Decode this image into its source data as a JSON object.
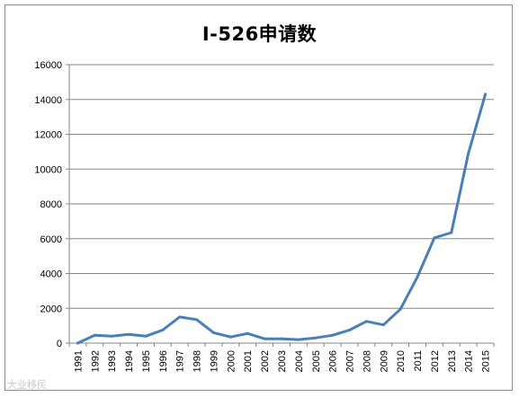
{
  "chart_data": {
    "type": "line",
    "title": "I-526申请数",
    "xlabel": "",
    "ylabel": "",
    "ylim": [
      0,
      16000
    ],
    "yticks": [
      0,
      2000,
      4000,
      6000,
      8000,
      10000,
      12000,
      14000,
      16000
    ],
    "grid": true,
    "legend": "none",
    "x": [
      "1991",
      "1992",
      "1993",
      "1994",
      "1995",
      "1996",
      "1997",
      "1998",
      "1999",
      "2000",
      "2001",
      "2002",
      "2003",
      "2004",
      "2005",
      "2006",
      "2007",
      "2008",
      "2009",
      "2010",
      "2011",
      "2012",
      "2013",
      "2014",
      "2015"
    ],
    "series": [
      {
        "values": [
          0,
          450,
          400,
          500,
          400,
          750,
          1500,
          1350,
          600,
          350,
          550,
          250,
          250,
          200,
          300,
          450,
          750,
          1250,
          1050,
          1950,
          3800,
          6050,
          6350,
          10900,
          14300
        ],
        "color": "#4a7eb8"
      }
    ]
  },
  "watermark": "大业移民"
}
